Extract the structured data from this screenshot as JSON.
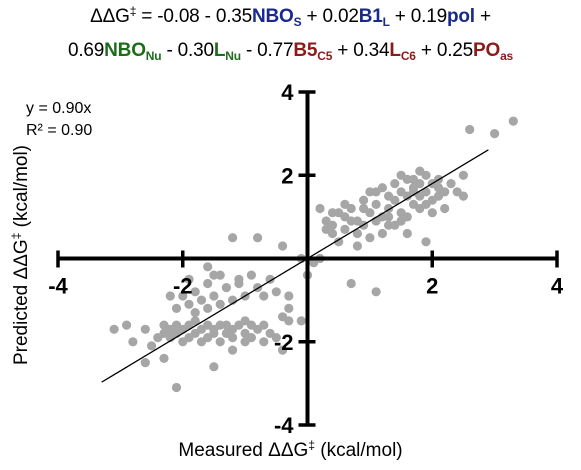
{
  "equation": {
    "line1": [
      {
        "t": "ΔΔG",
        "c": ""
      },
      {
        "t": "‡",
        "sup": true,
        "c": ""
      },
      {
        "t": " = -0.08 - 0.35",
        "c": ""
      },
      {
        "t": "NBO",
        "c": "blue",
        "b": true
      },
      {
        "t": "S",
        "sub": true,
        "c": "blue"
      },
      {
        "t": " + 0.02",
        "c": ""
      },
      {
        "t": "B1",
        "c": "blue",
        "b": true
      },
      {
        "t": "L",
        "sub": true,
        "c": "blue"
      },
      {
        "t": " + 0.19",
        "c": ""
      },
      {
        "t": "pol",
        "c": "blue",
        "b": true
      },
      {
        "t": " +",
        "c": ""
      }
    ],
    "line2": [
      {
        "t": "0.69",
        "c": ""
      },
      {
        "t": "NBO",
        "c": "green",
        "b": true
      },
      {
        "t": "Nu",
        "sub": true,
        "c": "green"
      },
      {
        "t": " - 0.30",
        "c": ""
      },
      {
        "t": "L",
        "c": "green",
        "b": true
      },
      {
        "t": "Nu",
        "sub": true,
        "c": "green"
      },
      {
        "t": " - 0.77",
        "c": ""
      },
      {
        "t": "B5",
        "c": "red",
        "b": true
      },
      {
        "t": "C5",
        "sub": true,
        "c": "red"
      },
      {
        "t": " + 0.34",
        "c": ""
      },
      {
        "t": "L",
        "c": "red",
        "b": true
      },
      {
        "t": "C6",
        "sub": true,
        "c": "red"
      },
      {
        "t": " + 0.25",
        "c": ""
      },
      {
        "t": "PO",
        "c": "red",
        "b": true
      },
      {
        "t": "as",
        "sub": true,
        "c": "red"
      }
    ]
  },
  "colors": {
    "blue": "#1a2a8c",
    "green": "#1e6b1e",
    "red": "#8c1a1a",
    "points": "#a6a6a6",
    "axis": "#000000"
  },
  "fit": {
    "equation": "y = 0.90x",
    "r2": "R² = 0.90",
    "slope": 0.9
  },
  "labels": {
    "x_main": "Measured ΔΔG",
    "x_sup": "‡",
    "x_unit": " (kcal/mol)",
    "y_main": "Predicted ΔΔG",
    "y_sup": "‡",
    "y_unit": " (kcal/mol)"
  },
  "chart_data": {
    "type": "scatter",
    "xlabel": "Measured ΔΔG‡ (kcal/mol)",
    "ylabel": "Predicted ΔΔG‡ (kcal/mol)",
    "xlim": [
      -4,
      4
    ],
    "ylim": [
      -4,
      4
    ],
    "xticks": [
      -4,
      -2,
      2,
      4
    ],
    "yticks": [
      4,
      2,
      -2,
      -4
    ],
    "grid": false,
    "fit_line": {
      "slope": 0.9,
      "intercept": 0,
      "x_range": [
        -3.3,
        2.9
      ]
    },
    "points": [
      [
        -3.1,
        -1.7
      ],
      [
        -2.9,
        -1.6
      ],
      [
        -2.6,
        -1.7
      ],
      [
        -2.5,
        -2.1
      ],
      [
        -2.4,
        -1.9
      ],
      [
        -2.3,
        -1.8
      ],
      [
        -2.3,
        -1.6
      ],
      [
        -2.2,
        -1.9
      ],
      [
        -2.2,
        -1.7
      ],
      [
        -2.1,
        -1.8
      ],
      [
        -2.1,
        -1.6
      ],
      [
        -2.0,
        -2.0
      ],
      [
        -2.0,
        -1.7
      ],
      [
        -1.9,
        -1.9
      ],
      [
        -1.9,
        -1.6
      ],
      [
        -1.8,
        -1.8
      ],
      [
        -1.8,
        -1.5
      ],
      [
        -1.7,
        -2.0
      ],
      [
        -1.7,
        -1.7
      ],
      [
        -1.6,
        -1.9
      ],
      [
        -1.6,
        -1.6
      ],
      [
        -1.5,
        -1.8
      ],
      [
        -1.5,
        -1.7
      ],
      [
        -1.4,
        -2.0
      ],
      [
        -1.4,
        -1.6
      ],
      [
        -1.3,
        -1.8
      ],
      [
        -1.3,
        -1.6
      ],
      [
        -1.2,
        -1.9
      ],
      [
        -1.2,
        -1.7
      ],
      [
        -1.1,
        -1.6
      ],
      [
        -1.0,
        -1.8
      ],
      [
        -1.0,
        -1.5
      ],
      [
        -0.9,
        -1.9
      ],
      [
        -0.9,
        -1.6
      ],
      [
        -0.8,
        -1.7
      ],
      [
        -0.7,
        -2.0
      ],
      [
        -0.7,
        -1.6
      ],
      [
        -0.6,
        -1.8
      ],
      [
        -0.5,
        -1.9
      ],
      [
        -0.3,
        -1.5
      ],
      [
        -0.4,
        -2.2
      ],
      [
        -2.2,
        -0.9
      ],
      [
        -2.1,
        -1.2
      ],
      [
        -2.0,
        -0.9
      ],
      [
        -1.9,
        -1.1
      ],
      [
        -1.8,
        -0.8
      ],
      [
        -1.8,
        -1.3
      ],
      [
        -1.7,
        -1.0
      ],
      [
        -1.6,
        -1.2
      ],
      [
        -1.5,
        -0.9
      ],
      [
        -1.4,
        -1.1
      ],
      [
        -1.3,
        -0.7
      ],
      [
        -1.2,
        -1.0
      ],
      [
        -1.1,
        -0.6
      ],
      [
        -1.0,
        -0.9
      ],
      [
        -0.8,
        -0.7
      ],
      [
        -0.9,
        -0.4
      ],
      [
        -0.7,
        -0.9
      ],
      [
        -0.6,
        -0.5
      ],
      [
        -1.1,
        -0.5
      ],
      [
        -1.4,
        -0.4
      ],
      [
        -0.5,
        -0.8
      ],
      [
        -0.3,
        -0.9
      ],
      [
        -1.6,
        -0.6
      ],
      [
        -1.5,
        -0.4
      ],
      [
        -1.9,
        -0.5
      ],
      [
        -2.6,
        -2.5
      ],
      [
        -1.2,
        -2.2
      ],
      [
        -1.0,
        -2.0
      ],
      [
        -2.8,
        -2.0
      ],
      [
        -1.6,
        -0.2
      ],
      [
        -0.8,
        0.5
      ],
      [
        -1.2,
        0.5
      ],
      [
        -0.4,
        0.3
      ],
      [
        -0.1,
        0.0
      ],
      [
        0.1,
        -0.1
      ],
      [
        0.2,
        0.0
      ],
      [
        -0.3,
        -1.2
      ],
      [
        -0.1,
        -1.5
      ],
      [
        -2.3,
        -2.4
      ],
      [
        -1.5,
        -2.6
      ],
      [
        -2.1,
        -3.1
      ],
      [
        0.0,
        -0.4
      ],
      [
        -0.4,
        -1.4
      ],
      [
        0.3,
        0.9
      ],
      [
        0.4,
        0.6
      ],
      [
        0.5,
        0.4
      ],
      [
        0.6,
        1.0
      ],
      [
        0.6,
        0.7
      ],
      [
        0.7,
        1.2
      ],
      [
        0.8,
        0.9
      ],
      [
        0.9,
        1.4
      ],
      [
        0.9,
        0.8
      ],
      [
        1.0,
        1.1
      ],
      [
        1.0,
        1.6
      ],
      [
        1.1,
        0.9
      ],
      [
        1.1,
        1.3
      ],
      [
        1.2,
        1.0
      ],
      [
        1.2,
        1.7
      ],
      [
        1.3,
        1.5
      ],
      [
        1.3,
        1.2
      ],
      [
        1.4,
        1.8
      ],
      [
        1.4,
        1.4
      ],
      [
        1.5,
        1.6
      ],
      [
        1.5,
        1.1
      ],
      [
        1.6,
        1.9
      ],
      [
        1.6,
        1.5
      ],
      [
        1.7,
        1.7
      ],
      [
        1.7,
        1.3
      ],
      [
        1.8,
        1.8
      ],
      [
        1.8,
        1.5
      ],
      [
        1.9,
        2.0
      ],
      [
        1.9,
        1.6
      ],
      [
        2.0,
        1.8
      ],
      [
        2.0,
        1.4
      ],
      [
        2.1,
        1.7
      ],
      [
        2.1,
        1.9
      ],
      [
        2.2,
        1.6
      ],
      [
        2.2,
        1.2
      ],
      [
        1.6,
        1.0
      ],
      [
        1.4,
        0.8
      ],
      [
        1.2,
        0.6
      ],
      [
        1.0,
        0.5
      ],
      [
        0.8,
        0.6
      ],
      [
        0.7,
        0.9
      ],
      [
        0.6,
        1.3
      ],
      [
        0.5,
        1.1
      ],
      [
        0.9,
        1.2
      ],
      [
        1.1,
        1.6
      ],
      [
        1.8,
        2.1
      ],
      [
        1.5,
        2.0
      ],
      [
        1.7,
        1.9
      ],
      [
        1.9,
        1.3
      ],
      [
        2.0,
        1.1
      ],
      [
        2.1,
        1.5
      ],
      [
        1.3,
        0.8
      ],
      [
        1.5,
        0.9
      ],
      [
        0.4,
        1.1
      ],
      [
        0.2,
        1.2
      ],
      [
        0.3,
        0.7
      ],
      [
        0.4,
        0.8
      ],
      [
        0.7,
        -0.6
      ],
      [
        1.1,
        -0.8
      ],
      [
        2.5,
        2.0
      ],
      [
        2.5,
        1.5
      ],
      [
        2.6,
        3.1
      ],
      [
        3.0,
        3.0
      ],
      [
        3.3,
        3.3
      ],
      [
        1.9,
        0.4
      ],
      [
        1.6,
        0.6
      ],
      [
        1.3,
        1.0
      ],
      [
        1.8,
        1.2
      ],
      [
        0.8,
        0.3
      ],
      [
        2.3,
        1.8
      ],
      [
        2.4,
        1.6
      ],
      [
        1.7,
        1.6
      ]
    ]
  }
}
